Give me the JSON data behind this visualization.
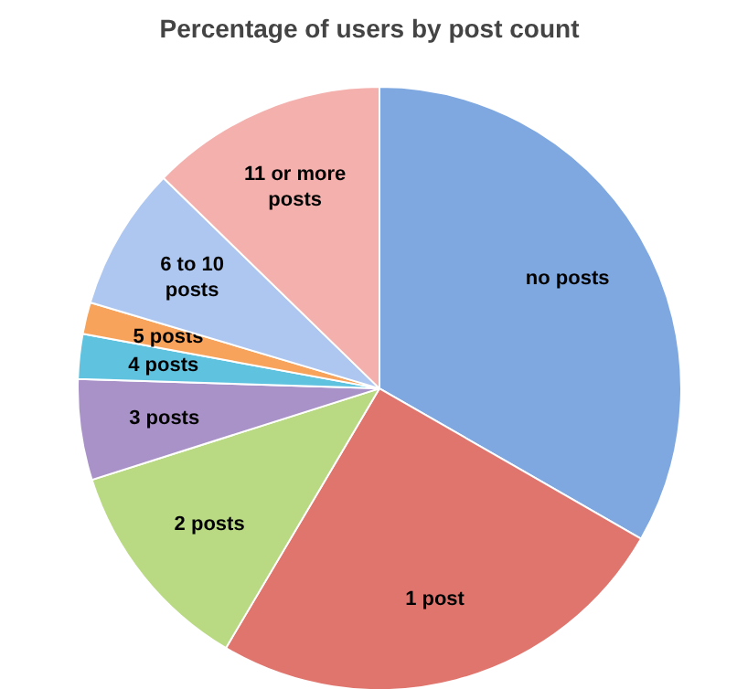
{
  "chart_data": {
    "type": "pie",
    "title": "Percentage of users by post count",
    "categories": [
      "no posts",
      "1 post",
      "2 posts",
      "3 posts",
      "4 posts",
      "5 posts",
      "6 to 10 posts",
      "11 or more posts"
    ],
    "values": [
      33.3,
      25.2,
      11.6,
      5.4,
      2.4,
      1.7,
      7.7,
      12.7
    ],
    "colors": [
      "#7fa8e0",
      "#e0756e",
      "#b9d983",
      "#a992c8",
      "#5fc3e0",
      "#f7a35c",
      "#aec7f0",
      "#f4b0ad"
    ]
  }
}
